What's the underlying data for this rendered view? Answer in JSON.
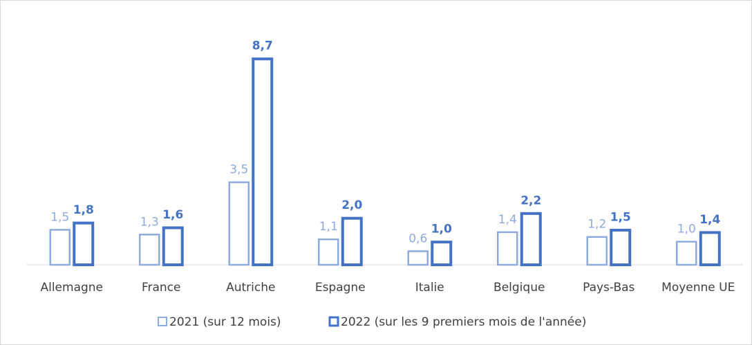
{
  "chart_data": {
    "type": "bar",
    "categories": [
      "Allemagne",
      "France",
      "Autriche",
      "Espagne",
      "Italie",
      "Belgique",
      "Pays-Bas",
      "Moyenne UE"
    ],
    "series": [
      {
        "name": "2021 (sur 12 mois)",
        "color": "#8faadc",
        "values": [
          1.5,
          1.3,
          3.5,
          1.1,
          0.6,
          1.4,
          1.2,
          1.0
        ],
        "value_labels": [
          "1,5",
          "1,3",
          "3,5",
          "1,1",
          "0,6",
          "1,4",
          "1,2",
          "1,0"
        ]
      },
      {
        "name": "2022 (sur les 9 premiers mois de l'année)",
        "color": "#4472c4",
        "values": [
          1.8,
          1.6,
          8.7,
          2.0,
          1.0,
          2.2,
          1.5,
          1.4
        ],
        "value_labels": [
          "1,8",
          "1,6",
          "8,7",
          "2,0",
          "1,0",
          "2,2",
          "1,5",
          "1,4"
        ]
      }
    ]
  }
}
